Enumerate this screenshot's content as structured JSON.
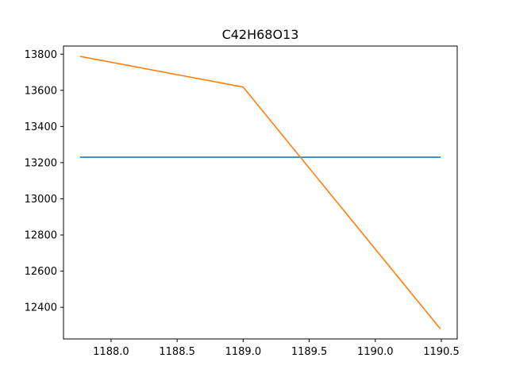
{
  "chart_data": {
    "type": "line",
    "title": "C42H68O13",
    "xlabel": "",
    "ylabel": "",
    "xlim": [
      1187.64,
      1190.62
    ],
    "ylim": [
      12225,
      13845
    ],
    "x_ticks": [
      1188.0,
      1188.5,
      1189.0,
      1189.5,
      1190.0,
      1190.5
    ],
    "x_tick_labels": [
      "1188.0",
      "1188.5",
      "1189.0",
      "1189.5",
      "1190.0",
      "1190.5"
    ],
    "y_ticks": [
      12400,
      12600,
      12800,
      13000,
      13200,
      13400,
      13600,
      13800
    ],
    "y_tick_labels": [
      "12400",
      "12600",
      "12800",
      "13000",
      "13200",
      "13400",
      "13600",
      "13800"
    ],
    "grid": false,
    "series": [
      {
        "color": "#1f77b4",
        "x": [
          1187.77,
          1190.49
        ],
        "y": [
          13230,
          13230
        ]
      },
      {
        "color": "#ff7f0e",
        "x": [
          1187.77,
          1189.0,
          1190.49
        ],
        "y": [
          13787,
          13618,
          12283
        ]
      }
    ]
  }
}
